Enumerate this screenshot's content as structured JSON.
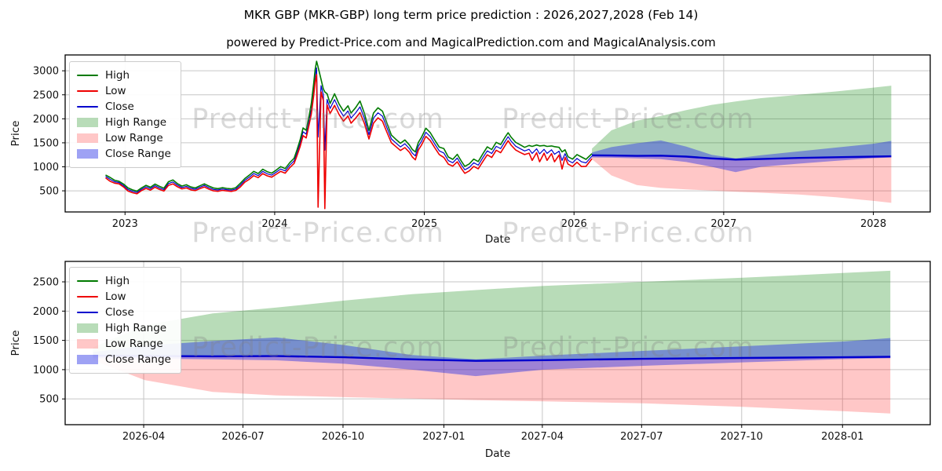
{
  "figure": {
    "title": "MKR GBP (MKR-GBP) long term price prediction : 2026,2027,2028 (Feb 14)",
    "subtitle": "powered by Predict-Price.com and MagicalPrediction.com and MagicalAnalysis.com",
    "watermark": "Predict-Price.com",
    "background": "#ffffff"
  },
  "colors": {
    "high_line": "#007a00",
    "low_line": "#ee0000",
    "close_line": "#0000cd",
    "high_range_fill": "rgba(0,128,0,0.28)",
    "low_range_fill": "rgba(255,30,30,0.25)",
    "close_range_fill": "rgba(40,48,230,0.45)",
    "grid": "#c6c6c6",
    "spine": "#000000"
  },
  "legend": {
    "items": [
      {
        "label": "High",
        "swatch": "line",
        "color": "#007a00"
      },
      {
        "label": "Low",
        "swatch": "line",
        "color": "#ee0000"
      },
      {
        "label": "Close",
        "swatch": "line",
        "color": "#0000cd"
      },
      {
        "label": "High Range",
        "swatch": "patch",
        "color": "rgba(0,128,0,0.28)"
      },
      {
        "label": "Low Range",
        "swatch": "patch",
        "color": "rgba(255,30,30,0.25)"
      },
      {
        "label": "Close Range",
        "swatch": "patch",
        "color": "rgba(40,48,230,0.45)"
      }
    ]
  },
  "top_chart": {
    "ylabel": "Price",
    "xlabel": "Date",
    "xlim": [
      2022.6,
      2028.38
    ],
    "ylim": [
      60,
      3330
    ],
    "xticks": [
      {
        "v": 2023,
        "label": "2023"
      },
      {
        "v": 2024,
        "label": "2024"
      },
      {
        "v": 2025,
        "label": "2025"
      },
      {
        "v": 2026,
        "label": "2026"
      },
      {
        "v": 2027,
        "label": "2027"
      },
      {
        "v": 2028,
        "label": "2028"
      }
    ],
    "yticks": [
      {
        "v": 500,
        "label": "500"
      },
      {
        "v": 1000,
        "label": "1000"
      },
      {
        "v": 1500,
        "label": "1500"
      },
      {
        "v": 2000,
        "label": "2000"
      },
      {
        "v": 2500,
        "label": "2500"
      },
      {
        "v": 3000,
        "label": "3000"
      }
    ]
  },
  "bottom_chart": {
    "ylabel": "Price",
    "xlabel": "Date",
    "xlim": [
      2026.05,
      2028.22
    ],
    "ylim": [
      60,
      2849
    ],
    "xticks": [
      {
        "v": 2026.247,
        "label": "2026-04"
      },
      {
        "v": 2026.496,
        "label": "2026-07"
      },
      {
        "v": 2026.747,
        "label": "2026-10"
      },
      {
        "v": 2027.0,
        "label": "2027-01"
      },
      {
        "v": 2027.247,
        "label": "2027-04"
      },
      {
        "v": 2027.496,
        "label": "2027-07"
      },
      {
        "v": 2027.747,
        "label": "2027-10"
      },
      {
        "v": 2028.0,
        "label": "2028-01"
      }
    ],
    "yticks": [
      {
        "v": 500,
        "label": "500"
      },
      {
        "v": 1000,
        "label": "1000"
      },
      {
        "v": 1500,
        "label": "1500"
      },
      {
        "v": 2000,
        "label": "2000"
      },
      {
        "v": 2500,
        "label": "2500"
      }
    ]
  },
  "chart_data": {
    "type": "line",
    "title": "MKR GBP (MKR-GBP) long term price prediction : 2026,2027,2028 (Feb 14)",
    "xlabel": "Date",
    "ylabel": "Price",
    "legend_position": "upper left",
    "grid": true,
    "historical": {
      "note": "observed MKR-GBP series, t in decimal years; close line is hidden between high and low",
      "columns": [
        "t",
        "high",
        "low"
      ],
      "close_hidden": true,
      "points": [
        [
          2022.87,
          830,
          770
        ],
        [
          2022.9,
          780,
          700
        ],
        [
          2022.93,
          720,
          660
        ],
        [
          2022.96,
          700,
          645
        ],
        [
          2022.99,
          640,
          580
        ],
        [
          2023.02,
          560,
          495
        ],
        [
          2023.05,
          520,
          460
        ],
        [
          2023.08,
          495,
          440
        ],
        [
          2023.11,
          560,
          505
        ],
        [
          2023.14,
          615,
          550
        ],
        [
          2023.17,
          575,
          515
        ],
        [
          2023.2,
          640,
          575
        ],
        [
          2023.23,
          595,
          530
        ],
        [
          2023.26,
          555,
          495
        ],
        [
          2023.29,
          690,
          615
        ],
        [
          2023.32,
          725,
          645
        ],
        [
          2023.35,
          650,
          585
        ],
        [
          2023.38,
          600,
          540
        ],
        [
          2023.41,
          625,
          560
        ],
        [
          2023.44,
          580,
          520
        ],
        [
          2023.47,
          560,
          505
        ],
        [
          2023.5,
          605,
          545
        ],
        [
          2023.53,
          645,
          580
        ],
        [
          2023.56,
          600,
          535
        ],
        [
          2023.59,
          560,
          500
        ],
        [
          2023.62,
          545,
          490
        ],
        [
          2023.65,
          565,
          510
        ],
        [
          2023.68,
          550,
          498
        ],
        [
          2023.71,
          540,
          488
        ],
        [
          2023.74,
          565,
          508
        ],
        [
          2023.77,
          655,
          580
        ],
        [
          2023.8,
          755,
          680
        ],
        [
          2023.83,
          825,
          740
        ],
        [
          2023.86,
          905,
          815
        ],
        [
          2023.89,
          860,
          775
        ],
        [
          2023.92,
          950,
          860
        ],
        [
          2023.95,
          898,
          812
        ],
        [
          2023.98,
          868,
          784
        ],
        [
          2024.01,
          930,
          845
        ],
        [
          2024.04,
          1005,
          905
        ],
        [
          2024.07,
          962,
          868
        ],
        [
          2024.1,
          1085,
          980
        ],
        [
          2024.13,
          1180,
          1070
        ],
        [
          2024.15,
          1360,
          1240
        ],
        [
          2024.17,
          1560,
          1420
        ],
        [
          2024.19,
          1810,
          1650
        ],
        [
          2024.21,
          1760,
          1600
        ],
        [
          2024.23,
          2060,
          1880
        ],
        [
          2024.245,
          2320,
          2100
        ],
        [
          2024.26,
          2720,
          2470
        ],
        [
          2024.27,
          3020,
          2760
        ],
        [
          2024.28,
          3200,
          2920
        ],
        [
          2024.29,
          3080,
          160
        ],
        [
          2024.31,
          2820,
          2560
        ],
        [
          2024.325,
          2620,
          2380
        ],
        [
          2024.335,
          2560,
          130
        ],
        [
          2024.35,
          2520,
          2290
        ],
        [
          2024.37,
          2320,
          2110
        ],
        [
          2024.4,
          2520,
          2280
        ],
        [
          2024.43,
          2310,
          2090
        ],
        [
          2024.46,
          2160,
          1950
        ],
        [
          2024.49,
          2270,
          2060
        ],
        [
          2024.51,
          2120,
          1910
        ],
        [
          2024.54,
          2230,
          2010
        ],
        [
          2024.57,
          2370,
          2130
        ],
        [
          2024.6,
          2110,
          1900
        ],
        [
          2024.63,
          1760,
          1580
        ],
        [
          2024.66,
          2120,
          1910
        ],
        [
          2024.69,
          2230,
          2020
        ],
        [
          2024.72,
          2160,
          1950
        ],
        [
          2024.75,
          1910,
          1720
        ],
        [
          2024.78,
          1660,
          1500
        ],
        [
          2024.81,
          1570,
          1420
        ],
        [
          2024.84,
          1490,
          1340
        ],
        [
          2024.87,
          1560,
          1400
        ],
        [
          2024.9,
          1455,
          1305
        ],
        [
          2024.92,
          1360,
          1205
        ],
        [
          2024.94,
          1310,
          1145
        ],
        [
          2024.96,
          1510,
          1350
        ],
        [
          2024.98,
          1610,
          1450
        ],
        [
          2025.01,
          1805,
          1635
        ],
        [
          2025.04,
          1710,
          1545
        ],
        [
          2025.07,
          1555,
          1395
        ],
        [
          2025.1,
          1410,
          1255
        ],
        [
          2025.13,
          1380,
          1195
        ],
        [
          2025.16,
          1205,
          1055
        ],
        [
          2025.19,
          1155,
          1015
        ],
        [
          2025.22,
          1260,
          1105
        ],
        [
          2025.25,
          1105,
          955
        ],
        [
          2025.27,
          1010,
          865
        ],
        [
          2025.3,
          1060,
          915
        ],
        [
          2025.33,
          1160,
          1010
        ],
        [
          2025.36,
          1110,
          958
        ],
        [
          2025.39,
          1265,
          1105
        ],
        [
          2025.42,
          1415,
          1250
        ],
        [
          2025.45,
          1360,
          1195
        ],
        [
          2025.48,
          1510,
          1345
        ],
        [
          2025.51,
          1465,
          1295
        ],
        [
          2025.54,
          1620,
          1445
        ],
        [
          2025.56,
          1710,
          1545
        ],
        [
          2025.58,
          1615,
          1450
        ],
        [
          2025.61,
          1510,
          1350
        ],
        [
          2025.64,
          1460,
          1300
        ],
        [
          2025.67,
          1405,
          1255
        ],
        [
          2025.7,
          1445,
          1285
        ],
        [
          2025.72,
          1425,
          1135
        ],
        [
          2025.75,
          1455,
          1295
        ],
        [
          2025.77,
          1435,
          1105
        ],
        [
          2025.8,
          1445,
          1285
        ],
        [
          2025.82,
          1425,
          1135
        ],
        [
          2025.85,
          1435,
          1275
        ],
        [
          2025.87,
          1420,
          1105
        ],
        [
          2025.9,
          1405,
          1245
        ],
        [
          2025.92,
          1310,
          955
        ],
        [
          2025.94,
          1355,
          1195
        ],
        [
          2025.96,
          1210,
          1055
        ],
        [
          2025.99,
          1160,
          1005
        ],
        [
          2026.02,
          1255,
          1095
        ],
        [
          2026.05,
          1205,
          1005
        ],
        [
          2026.08,
          1155,
          1010
        ],
        [
          2026.12,
          1275,
          1170
        ]
      ]
    },
    "forecast": {
      "note": "predicted close line with high/low/close ranges, Feb 2026 - Feb 2028",
      "columns": [
        "t",
        "close",
        "close_range_top",
        "close_range_bottom",
        "high_range_top",
        "low_range_bottom"
      ],
      "points": [
        [
          2026.12,
          1240,
          1300,
          1195,
          1380,
          1160
        ],
        [
          2026.25,
          1235,
          1410,
          1190,
          1760,
          820
        ],
        [
          2026.42,
          1228,
          1490,
          1175,
          1960,
          620
        ],
        [
          2026.58,
          1232,
          1550,
          1160,
          2060,
          560
        ],
        [
          2026.75,
          1212,
          1420,
          1100,
          2180,
          530
        ],
        [
          2026.92,
          1175,
          1250,
          1000,
          2290,
          505
        ],
        [
          2027.08,
          1150,
          1175,
          890,
          2360,
          480
        ],
        [
          2027.25,
          1162,
          1240,
          1000,
          2430,
          460
        ],
        [
          2027.5,
          1185,
          1320,
          1065,
          2500,
          425
        ],
        [
          2027.75,
          1200,
          1400,
          1125,
          2570,
          365
        ],
        [
          2028.0,
          1212,
          1480,
          1180,
          2650,
          290
        ],
        [
          2028.12,
          1220,
          1540,
          1195,
          2690,
          250
        ]
      ]
    }
  }
}
